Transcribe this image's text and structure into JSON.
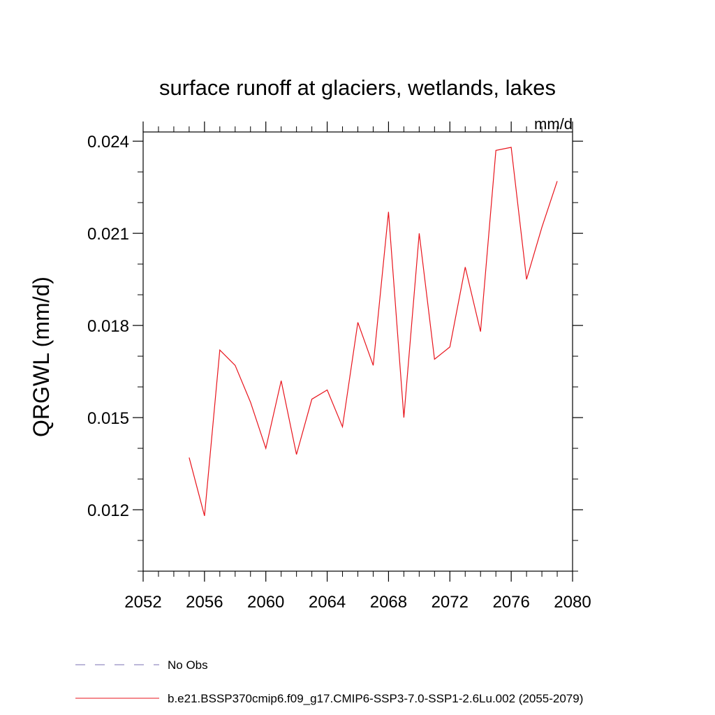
{
  "chart_data": {
    "type": "line",
    "title": "surface runoff at glaciers, wetlands, lakes",
    "units": "mm/d",
    "ylabel": "QRGWL  (mm/d)",
    "xlabel": "",
    "xlim": [
      2052,
      2080
    ],
    "ylim": [
      0.01,
      0.0243
    ],
    "x_ticks": [
      2052,
      2056,
      2060,
      2064,
      2068,
      2072,
      2076,
      2080
    ],
    "x_tick_labels": [
      "2052",
      "2056",
      "2060",
      "2064",
      "2068",
      "2072",
      "2076",
      "2080"
    ],
    "y_ticks": [
      0.012,
      0.015,
      0.018,
      0.021,
      0.024
    ],
    "y_tick_labels": [
      "0.012",
      "0.015",
      "0.018",
      "0.021",
      "0.024"
    ],
    "grid": false,
    "legend_position": "bottom",
    "series": [
      {
        "name": "No Obs",
        "color": "#7a6fb3",
        "dash": "dashed",
        "x": [],
        "y": []
      },
      {
        "name": "b.e21.BSSP370cmip6.f09_g17.CMIP6-SSP3-7.0-SSP1-2.6Lu.002 (2055-2079)",
        "color": "#e8141c",
        "dash": "solid",
        "x": [
          2055,
          2056,
          2057,
          2058,
          2059,
          2060,
          2061,
          2062,
          2063,
          2064,
          2065,
          2066,
          2067,
          2068,
          2069,
          2070,
          2071,
          2072,
          2073,
          2074,
          2075,
          2076,
          2077,
          2078,
          2079
        ],
        "y": [
          0.0137,
          0.0118,
          0.0172,
          0.0167,
          0.0155,
          0.014,
          0.0162,
          0.0138,
          0.0156,
          0.0159,
          0.0147,
          0.0181,
          0.0167,
          0.0217,
          0.015,
          0.021,
          0.0169,
          0.0173,
          0.0199,
          0.0178,
          0.0237,
          0.0238,
          0.0195,
          0.0212,
          0.0227
        ]
      }
    ]
  }
}
